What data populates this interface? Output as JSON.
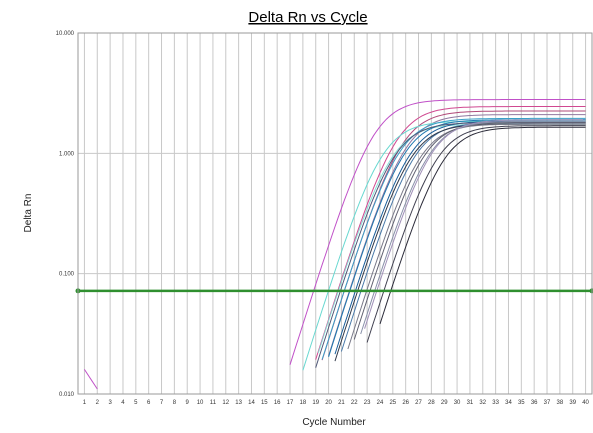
{
  "chart_data": {
    "type": "line",
    "title": "Delta Rn vs Cycle",
    "xlabel": "Cycle Number",
    "ylabel": "Delta Rn",
    "yscale": "log",
    "xlim": [
      0.5,
      40.5
    ],
    "ylim": [
      0.01,
      10
    ],
    "grid": true,
    "x_ticks": [
      "1",
      "2",
      "3",
      "4",
      "5",
      "6",
      "7",
      "8",
      "9",
      "10",
      "11",
      "12",
      "13",
      "14",
      "15",
      "16",
      "17",
      "18",
      "19",
      "20",
      "21",
      "22",
      "23",
      "24",
      "25",
      "26",
      "27",
      "28",
      "29",
      "30",
      "31",
      "32",
      "33",
      "34",
      "35",
      "36",
      "37",
      "38",
      "39",
      "40"
    ],
    "y_ticks": [
      {
        "value": 10,
        "label": "10.000"
      },
      {
        "value": 1,
        "label": "1.000"
      },
      {
        "value": 0.1,
        "label": "0.100"
      },
      {
        "value": 0.01,
        "label": "0.010"
      }
    ],
    "threshold": 0.072,
    "threshold_color": "#2f8f2f",
    "series": [
      {
        "color": "#c050c8",
        "x_start": 17.0,
        "midpoint": 23.5,
        "plateau": 2.8
      },
      {
        "color": "#d04890",
        "x_start": 19.0,
        "midpoint": 25.2,
        "plateau": 2.45
      },
      {
        "color": "#b04878",
        "x_start": 19.5,
        "midpoint": 25.6,
        "plateau": 2.25
      },
      {
        "color": "#9078a0",
        "x_start": 20.0,
        "midpoint": 25.9,
        "plateau": 2.1
      },
      {
        "color": "#68d8d0",
        "x_start": 18.0,
        "midpoint": 24.1,
        "plateau": 1.85
      },
      {
        "color": "#88e0d8",
        "x_start": 19.2,
        "midpoint": 24.8,
        "plateau": 1.75
      },
      {
        "color": "#3a9fc8",
        "x_start": 19.5,
        "midpoint": 25.4,
        "plateau": 1.95
      },
      {
        "color": "#1e78b0",
        "x_start": 20.0,
        "midpoint": 25.8,
        "plateau": 1.9
      },
      {
        "color": "#1a5e9a",
        "x_start": 20.5,
        "midpoint": 26.2,
        "plateau": 1.85
      },
      {
        "color": "#4878a8",
        "x_start": 21.0,
        "midpoint": 26.6,
        "plateau": 1.8
      },
      {
        "color": "#505878",
        "x_start": 19.0,
        "midpoint": 25.0,
        "plateau": 1.8
      },
      {
        "color": "#303848",
        "x_start": 20.5,
        "midpoint": 26.3,
        "plateau": 1.75
      },
      {
        "color": "#787888",
        "x_start": 21.5,
        "midpoint": 27.0,
        "plateau": 1.75
      },
      {
        "color": "#606070",
        "x_start": 22.0,
        "midpoint": 27.3,
        "plateau": 1.8
      },
      {
        "color": "#8890a8",
        "x_start": 22.5,
        "midpoint": 27.7,
        "plateau": 1.85
      },
      {
        "color": "#a090b8",
        "x_start": 22.8,
        "midpoint": 27.9,
        "plateau": 1.9
      },
      {
        "color": "#404050",
        "x_start": 23.0,
        "midpoint": 28.3,
        "plateau": 1.7
      },
      {
        "color": "#2a2a38",
        "x_start": 24.0,
        "midpoint": 28.8,
        "plateau": 1.65
      }
    ],
    "early_segment": {
      "color": "#c050c8",
      "x": [
        1,
        2
      ],
      "y": [
        0.016,
        0.011
      ]
    }
  }
}
